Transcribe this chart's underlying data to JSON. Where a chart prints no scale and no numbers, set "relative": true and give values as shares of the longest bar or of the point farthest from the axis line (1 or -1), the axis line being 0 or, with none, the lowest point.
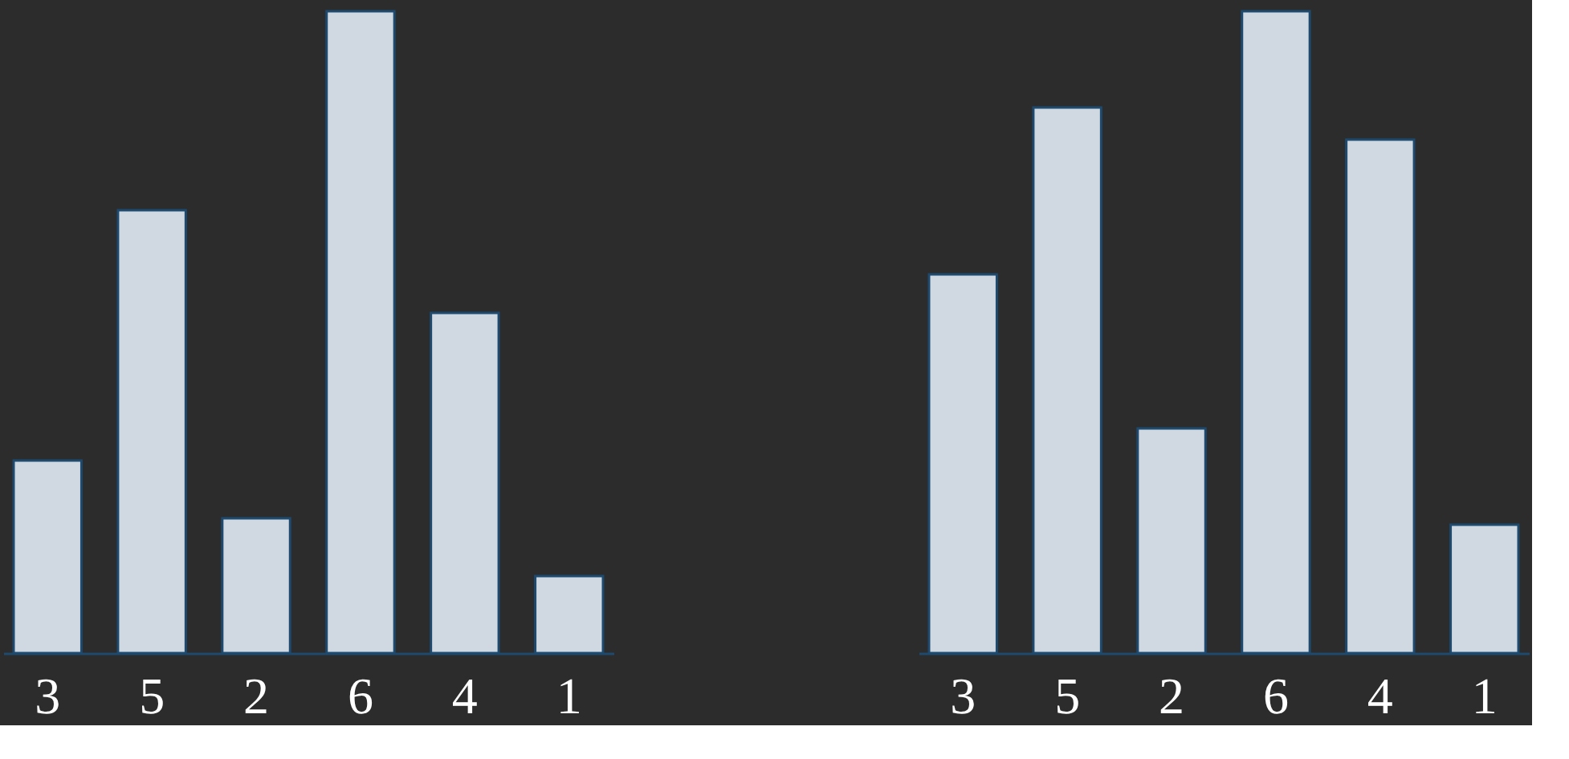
{
  "chart_data": [
    {
      "type": "bar",
      "relative": true,
      "categories": [
        "3",
        "5",
        "2",
        "6",
        "4",
        "1"
      ],
      "values": [
        0.3,
        0.69,
        0.21,
        1.0,
        0.53,
        0.12
      ],
      "color": "#d0d9e1"
    },
    {
      "type": "bar",
      "relative": true,
      "categories": [
        "3",
        "5",
        "2",
        "6",
        "4",
        "1"
      ],
      "values": [
        0.59,
        0.85,
        0.35,
        1.0,
        0.8,
        0.2
      ],
      "color": "#d0d9e1"
    }
  ]
}
